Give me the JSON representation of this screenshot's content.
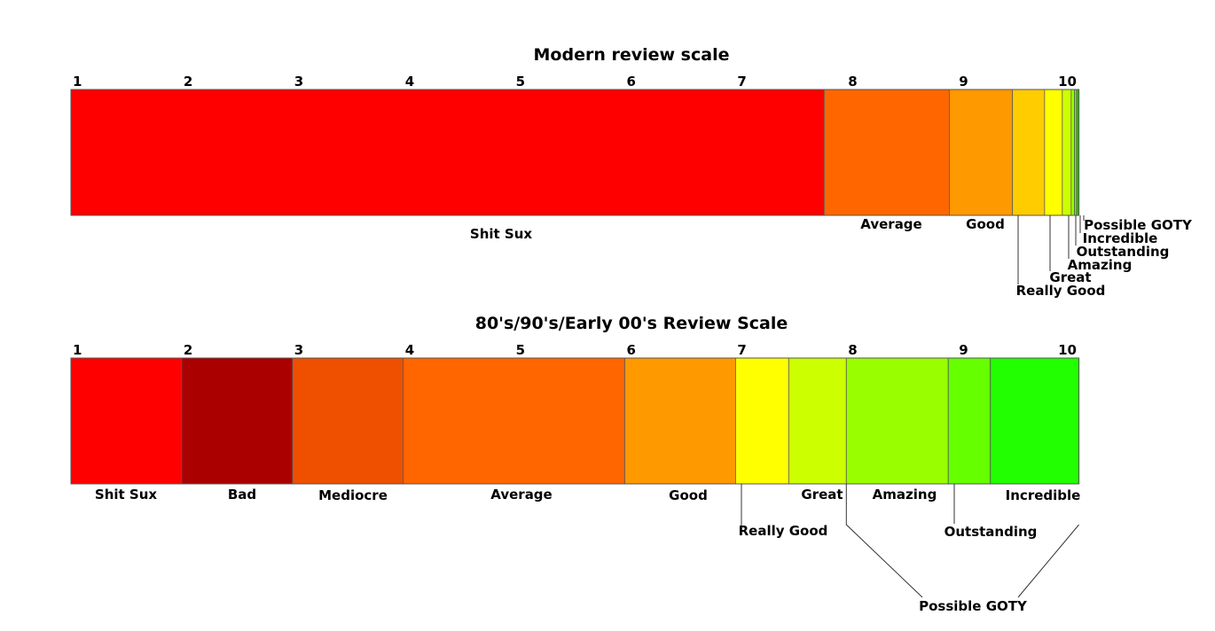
{
  "chart_data": [
    {
      "type": "bar",
      "orientation": "horizontal-stacked",
      "title": "Modern review scale",
      "xlim": [
        1,
        10.1
      ],
      "ticks": [
        "1",
        "2",
        "3",
        "4",
        "5",
        "6",
        "7",
        "8",
        "9",
        "10"
      ],
      "segments": [
        {
          "label": "Shit Sux",
          "from": 1.0,
          "to": 7.8,
          "color": "#ff0000"
        },
        {
          "label": "Average",
          "from": 7.8,
          "to": 8.93,
          "color": "#ff6600"
        },
        {
          "label": "Good",
          "from": 8.93,
          "to": 9.5,
          "color": "#ff9900"
        },
        {
          "label": "Really Good",
          "from": 9.5,
          "to": 9.79,
          "color": "#ffcc00"
        },
        {
          "label": "Great",
          "from": 9.79,
          "to": 9.95,
          "color": "#ffff00"
        },
        {
          "label": "Amazing",
          "from": 9.95,
          "to": 10.03,
          "color": "#ccff00"
        },
        {
          "label": "Outstanding",
          "from": 10.03,
          "to": 10.06,
          "color": "#99ff00"
        },
        {
          "label": "Incredible",
          "from": 10.06,
          "to": 10.08,
          "color": "#66ee00"
        },
        {
          "label": "Possible GOTY",
          "from": 10.08,
          "to": 10.1,
          "color": "#22cc00"
        }
      ]
    },
    {
      "type": "bar",
      "orientation": "horizontal-stacked",
      "title": "80's/90's/Early 00's Review Scale",
      "xlim": [
        1,
        10.1
      ],
      "ticks": [
        "1",
        "2",
        "3",
        "4",
        "5",
        "6",
        "7",
        "8",
        "9",
        "10"
      ],
      "segments": [
        {
          "label": "Shit Sux",
          "from": 1.0,
          "to": 2.0,
          "color": "#ff0000"
        },
        {
          "label": "Bad",
          "from": 2.0,
          "to": 3.0,
          "color": "#aa0000"
        },
        {
          "label": "Mediocre",
          "from": 3.0,
          "to": 4.0,
          "color": "#ee5000"
        },
        {
          "label": "Average",
          "from": 4.0,
          "to": 6.0,
          "color": "#ff6600"
        },
        {
          "label": "Good",
          "from": 6.0,
          "to": 7.0,
          "color": "#ff9900"
        },
        {
          "label": "Really Good",
          "from": 7.0,
          "to": 7.48,
          "color": "#ffff00"
        },
        {
          "label": "Great",
          "from": 7.48,
          "to": 8.0,
          "color": "#ccff00"
        },
        {
          "label": "Amazing",
          "from": 8.0,
          "to": 8.92,
          "color": "#99ff00"
        },
        {
          "label": "Outstanding",
          "from": 8.92,
          "to": 9.3,
          "color": "#66ff00"
        },
        {
          "label": "Incredible",
          "from": 9.3,
          "to": 10.1,
          "color": "#22ff00"
        }
      ],
      "bracket": {
        "label": "Possible GOTY",
        "from": 8.0,
        "to": 10.1
      }
    }
  ]
}
